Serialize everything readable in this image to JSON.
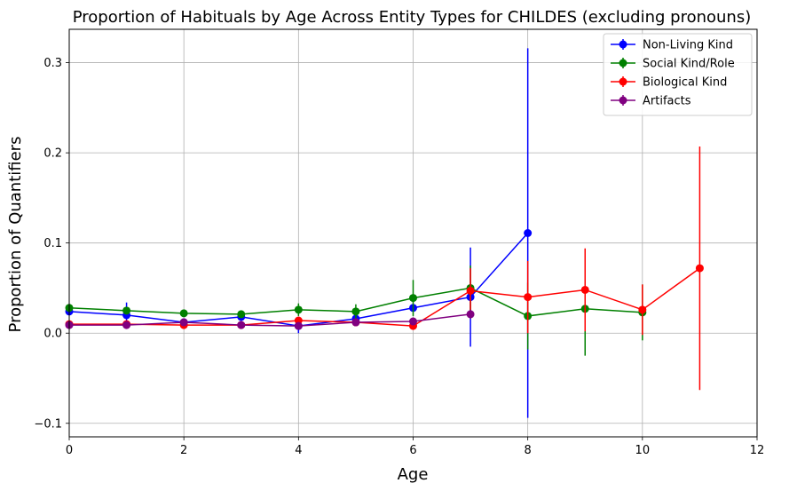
{
  "chart_data": {
    "type": "line",
    "title": "Proportion of Habituals by Age Across Entity Types for CHILDES (excluding pronouns)",
    "xlabel": "Age",
    "ylabel": "Proportion of Quantifiers",
    "xlim": [
      0,
      12
    ],
    "ylim": [
      -0.115,
      0.337
    ],
    "x_ticks": [
      0,
      2,
      4,
      6,
      8,
      10,
      12
    ],
    "y_ticks": [
      -0.1,
      0.0,
      0.1,
      0.2,
      0.3
    ],
    "x_tick_labels": [
      "0",
      "2",
      "4",
      "6",
      "8",
      "10",
      "12"
    ],
    "y_tick_labels": [
      "−0.1",
      "0.0",
      "0.1",
      "0.2",
      "0.3"
    ],
    "grid": true,
    "legend_position": "top-right",
    "error_bars": true,
    "series": [
      {
        "name": "Non-Living Kind",
        "color": "#0000ff",
        "x": [
          0,
          1,
          2,
          3,
          4,
          5,
          6,
          7,
          8
        ],
        "y": [
          0.024,
          0.02,
          0.012,
          0.018,
          0.008,
          0.016,
          0.028,
          0.04,
          0.111
        ],
        "err": [
          0.004,
          0.014,
          0.004,
          0.004,
          0.008,
          0.004,
          0.004,
          0.055,
          0.205
        ]
      },
      {
        "name": "Social Kind/Role",
        "color": "#008000",
        "x": [
          0,
          1,
          2,
          3,
          4,
          5,
          6,
          7,
          8,
          9,
          10
        ],
        "y": [
          0.028,
          0.025,
          0.022,
          0.021,
          0.026,
          0.024,
          0.039,
          0.05,
          0.019,
          0.027,
          0.023
        ],
        "err": [
          0.003,
          0.004,
          0.003,
          0.003,
          0.007,
          0.008,
          0.02,
          0.025,
          0.037,
          0.052,
          0.031
        ]
      },
      {
        "name": "Biological Kind",
        "color": "#ff0000",
        "x": [
          0,
          1,
          2,
          3,
          4,
          5,
          6,
          7,
          8,
          9,
          10,
          11
        ],
        "y": [
          0.01,
          0.01,
          0.009,
          0.009,
          0.014,
          0.012,
          0.008,
          0.047,
          0.04,
          0.048,
          0.026,
          0.072
        ],
        "err": [
          0.002,
          0.002,
          0.002,
          0.002,
          0.003,
          0.003,
          0.004,
          0.025,
          0.04,
          0.046,
          0.028,
          0.135
        ]
      },
      {
        "name": "Artifacts",
        "color": "#800080",
        "x": [
          0,
          1,
          2,
          3,
          4,
          5,
          6,
          7
        ],
        "y": [
          0.009,
          0.009,
          0.012,
          0.009,
          0.008,
          0.012,
          0.013,
          0.021
        ],
        "err": [
          0.002,
          0.002,
          0.002,
          0.002,
          0.003,
          0.003,
          0.003,
          0.005
        ]
      }
    ]
  }
}
